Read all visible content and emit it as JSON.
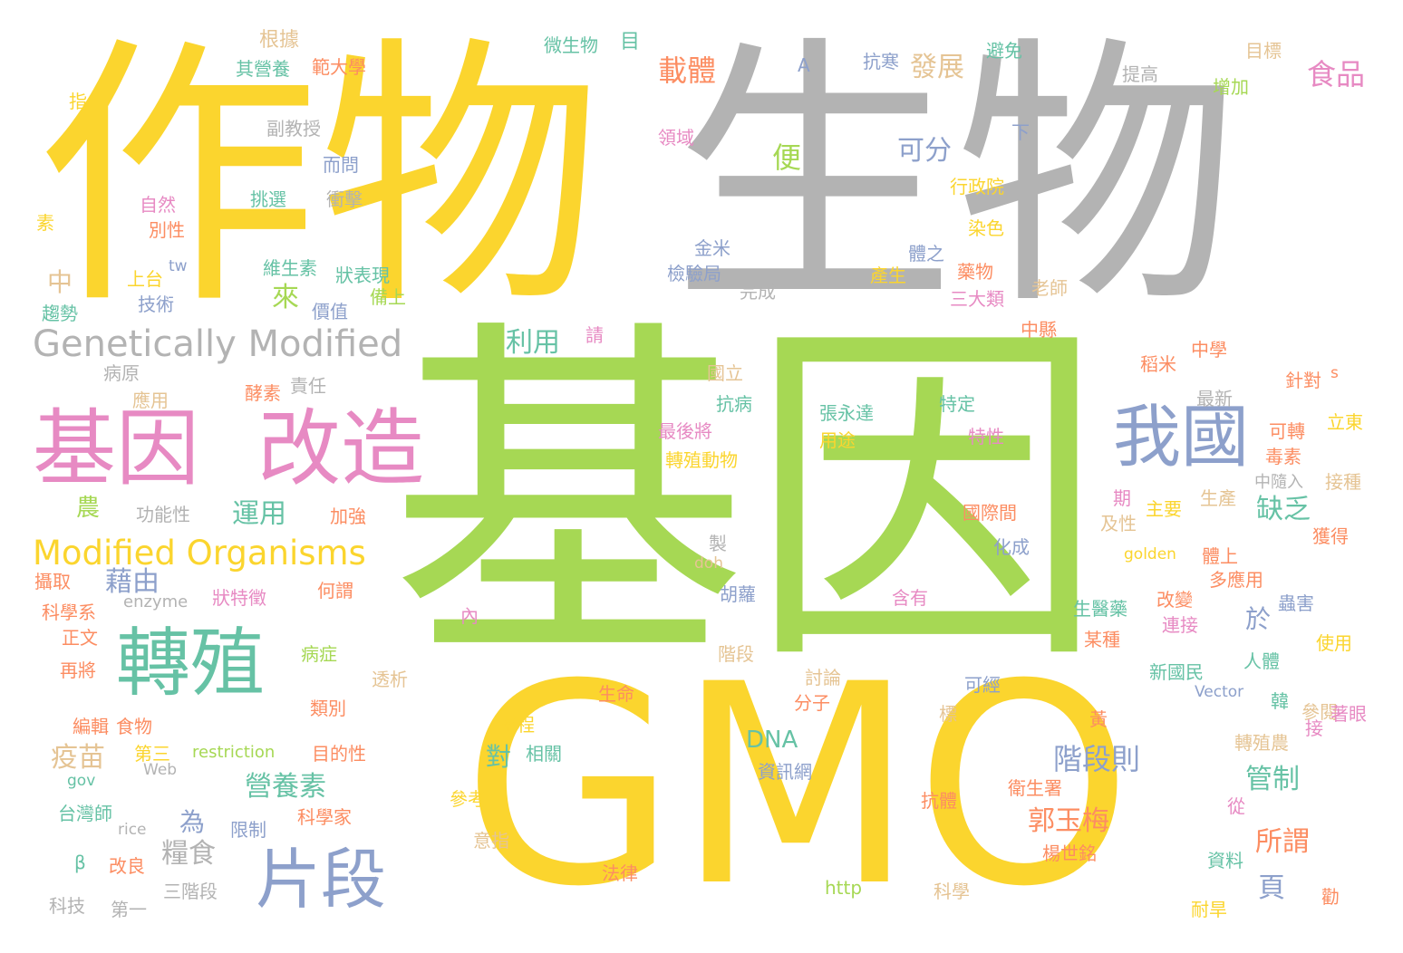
{
  "palette": {
    "yellow": "#fbd52e",
    "green": "#a6d854",
    "gray": "#b3b3b3",
    "pink": "#e78ac3",
    "blue": "#8da0cb",
    "teal": "#66c2a5",
    "orange": "#fc8d62",
    "tan": "#e5c494"
  },
  "words": [
    {
      "text": "作物",
      "color": "yellow"
    },
    {
      "text": "生物",
      "color": "gray"
    },
    {
      "text": "基因",
      "color": "green"
    },
    {
      "text": "GMO",
      "color": "yellow"
    },
    {
      "text": "基因",
      "color": "pink"
    },
    {
      "text": "改造",
      "color": "pink"
    },
    {
      "text": "我國",
      "color": "blue"
    },
    {
      "text": "Genetically Modified",
      "color": "gray"
    },
    {
      "text": "Modified Organisms",
      "color": "yellow"
    },
    {
      "text": "轉殖",
      "color": "teal"
    },
    {
      "text": "片段",
      "color": "blue"
    },
    {
      "text": "載體",
      "color": "orange"
    },
    {
      "text": "發展",
      "color": "tan"
    },
    {
      "text": "食品",
      "color": "pink"
    },
    {
      "text": "可分",
      "color": "blue"
    },
    {
      "text": "便",
      "color": "green"
    },
    {
      "text": "利用",
      "color": "teal"
    },
    {
      "text": "來",
      "color": "green"
    },
    {
      "text": "運用",
      "color": "teal"
    },
    {
      "text": "藉由",
      "color": "blue"
    },
    {
      "text": "農",
      "color": "green"
    },
    {
      "text": "中",
      "color": "tan"
    },
    {
      "text": "缺乏",
      "color": "teal"
    },
    {
      "text": "於",
      "color": "blue"
    },
    {
      "text": "DNA",
      "color": "teal"
    },
    {
      "text": "階段則",
      "color": "blue"
    },
    {
      "text": "營養素",
      "color": "teal"
    },
    {
      "text": "郭玉梅",
      "color": "orange"
    },
    {
      "text": "管制",
      "color": "teal"
    },
    {
      "text": "所謂",
      "color": "orange"
    },
    {
      "text": "頁",
      "color": "blue"
    },
    {
      "text": "疫苗",
      "color": "tan"
    },
    {
      "text": "對",
      "color": "teal"
    },
    {
      "text": "為",
      "color": "blue"
    },
    {
      "text": "糧食",
      "color": "gray"
    },
    {
      "text": "根據",
      "color": "tan"
    },
    {
      "text": "其營養",
      "color": "teal"
    },
    {
      "text": "範大學",
      "color": "orange"
    },
    {
      "text": "微生物",
      "color": "teal"
    },
    {
      "text": "目",
      "color": "teal"
    },
    {
      "text": "A",
      "color": "blue"
    },
    {
      "text": "抗寒",
      "color": "blue"
    },
    {
      "text": "避免",
      "color": "teal"
    },
    {
      "text": "提高",
      "color": "gray"
    },
    {
      "text": "目標",
      "color": "tan"
    },
    {
      "text": "增加",
      "color": "green"
    },
    {
      "text": "指",
      "color": "yellow"
    },
    {
      "text": "副教授",
      "color": "gray"
    },
    {
      "text": "領域",
      "color": "pink"
    },
    {
      "text": "下",
      "color": "blue"
    },
    {
      "text": "而問",
      "color": "blue"
    },
    {
      "text": "自然",
      "color": "pink"
    },
    {
      "text": "挑選",
      "color": "teal"
    },
    {
      "text": "衝擊",
      "color": "gray"
    },
    {
      "text": "行政院",
      "color": "yellow"
    },
    {
      "text": "素",
      "color": "yellow"
    },
    {
      "text": "別性",
      "color": "orange"
    },
    {
      "text": "染色",
      "color": "yellow"
    },
    {
      "text": "上台",
      "color": "yellow"
    },
    {
      "text": "tw",
      "color": "blue"
    },
    {
      "text": "維生素",
      "color": "teal"
    },
    {
      "text": "狀表現",
      "color": "teal"
    },
    {
      "text": "金米",
      "color": "blue"
    },
    {
      "text": "體之",
      "color": "blue"
    },
    {
      "text": "檢驗局",
      "color": "blue"
    },
    {
      "text": "產生",
      "color": "yellow"
    },
    {
      "text": "藥物",
      "color": "orange"
    },
    {
      "text": "技術",
      "color": "blue"
    },
    {
      "text": "備上",
      "color": "green"
    },
    {
      "text": "完成",
      "color": "gray"
    },
    {
      "text": "三大類",
      "color": "pink"
    },
    {
      "text": "老師",
      "color": "tan"
    },
    {
      "text": "趨勢",
      "color": "teal"
    },
    {
      "text": "價值",
      "color": "blue"
    },
    {
      "text": "中縣",
      "color": "orange"
    },
    {
      "text": "請",
      "color": "pink"
    },
    {
      "text": "稻米",
      "color": "orange"
    },
    {
      "text": "中學",
      "color": "orange"
    },
    {
      "text": "病原",
      "color": "gray"
    },
    {
      "text": "責任",
      "color": "gray"
    },
    {
      "text": "國立",
      "color": "tan"
    },
    {
      "text": "最新",
      "color": "gray"
    },
    {
      "text": "針對",
      "color": "orange"
    },
    {
      "text": "s",
      "color": "orange"
    },
    {
      "text": "應用",
      "color": "tan"
    },
    {
      "text": "酵素",
      "color": "orange"
    },
    {
      "text": "抗病",
      "color": "teal"
    },
    {
      "text": "張永達",
      "color": "teal"
    },
    {
      "text": "特定",
      "color": "teal"
    },
    {
      "text": "特性",
      "color": "pink"
    },
    {
      "text": "可轉",
      "color": "orange"
    },
    {
      "text": "立東",
      "color": "yellow"
    },
    {
      "text": "最後將",
      "color": "pink"
    },
    {
      "text": "用途",
      "color": "yellow"
    },
    {
      "text": "毒素",
      "color": "orange"
    },
    {
      "text": "轉殖動物",
      "color": "yellow"
    },
    {
      "text": "中隨入",
      "color": "gray"
    },
    {
      "text": "接種",
      "color": "tan"
    },
    {
      "text": "功能性",
      "color": "gray"
    },
    {
      "text": "加強",
      "color": "orange"
    },
    {
      "text": "國際間",
      "color": "orange"
    },
    {
      "text": "期",
      "color": "pink"
    },
    {
      "text": "主要",
      "color": "yellow"
    },
    {
      "text": "生產",
      "color": "tan"
    },
    {
      "text": "及性",
      "color": "tan"
    },
    {
      "text": "獲得",
      "color": "orange"
    },
    {
      "text": "製",
      "color": "gray"
    },
    {
      "text": "golden",
      "color": "yellow"
    },
    {
      "text": "體上",
      "color": "orange"
    },
    {
      "text": "doh",
      "color": "tan"
    },
    {
      "text": "化成",
      "color": "blue"
    },
    {
      "text": "多應用",
      "color": "orange"
    },
    {
      "text": "攝取",
      "color": "orange"
    },
    {
      "text": "enzyme",
      "color": "gray"
    },
    {
      "text": "狀特徵",
      "color": "pink"
    },
    {
      "text": "何謂",
      "color": "orange"
    },
    {
      "text": "胡蘿",
      "color": "blue"
    },
    {
      "text": "含有",
      "color": "pink"
    },
    {
      "text": "改變",
      "color": "orange"
    },
    {
      "text": "蟲害",
      "color": "blue"
    },
    {
      "text": "科學系",
      "color": "orange"
    },
    {
      "text": "正文",
      "color": "orange"
    },
    {
      "text": "內",
      "color": "pink"
    },
    {
      "text": "生醫藥",
      "color": "teal"
    },
    {
      "text": "連接",
      "color": "pink"
    },
    {
      "text": "病症",
      "color": "green"
    },
    {
      "text": "再將",
      "color": "orange"
    },
    {
      "text": "階段",
      "color": "tan"
    },
    {
      "text": "某種",
      "color": "orange"
    },
    {
      "text": "使用",
      "color": "yellow"
    },
    {
      "text": "透析",
      "color": "tan"
    },
    {
      "text": "討論",
      "color": "tan"
    },
    {
      "text": "新國民",
      "color": "teal"
    },
    {
      "text": "人體",
      "color": "teal"
    },
    {
      "text": "類別",
      "color": "orange"
    },
    {
      "text": "生命",
      "color": "orange"
    },
    {
      "text": "分子",
      "color": "orange"
    },
    {
      "text": "可經",
      "color": "blue"
    },
    {
      "text": "Vector",
      "color": "blue"
    },
    {
      "text": "韓",
      "color": "teal"
    },
    {
      "text": "參閱",
      "color": "tan"
    },
    {
      "text": "編輯",
      "color": "orange"
    },
    {
      "text": "食物",
      "color": "orange"
    },
    {
      "text": "標",
      "color": "tan"
    },
    {
      "text": "著眼",
      "color": "pink"
    },
    {
      "text": "歷程",
      "color": "yellow"
    },
    {
      "text": "黃",
      "color": "orange"
    },
    {
      "text": "接",
      "color": "pink"
    },
    {
      "text": "第三",
      "color": "yellow"
    },
    {
      "text": "restriction",
      "color": "green"
    },
    {
      "text": "目的性",
      "color": "orange"
    },
    {
      "text": "相關",
      "color": "teal"
    },
    {
      "text": "轉殖農",
      "color": "tan"
    },
    {
      "text": "gov",
      "color": "teal"
    },
    {
      "text": "Web",
      "color": "gray"
    },
    {
      "text": "資訊網",
      "color": "blue"
    },
    {
      "text": "衛生署",
      "color": "orange"
    },
    {
      "text": "台灣師",
      "color": "teal"
    },
    {
      "text": "科學家",
      "color": "orange"
    },
    {
      "text": "參考",
      "color": "yellow"
    },
    {
      "text": "抗體",
      "color": "orange"
    },
    {
      "text": "從",
      "color": "pink"
    },
    {
      "text": "rice",
      "color": "gray"
    },
    {
      "text": "限制",
      "color": "blue"
    },
    {
      "text": "意指",
      "color": "tan"
    },
    {
      "text": "楊世銘",
      "color": "orange"
    },
    {
      "text": "β",
      "color": "teal"
    },
    {
      "text": "改良",
      "color": "orange"
    },
    {
      "text": "三階段",
      "color": "gray"
    },
    {
      "text": "法律",
      "color": "orange"
    },
    {
      "text": "資料",
      "color": "teal"
    },
    {
      "text": "科技",
      "color": "gray"
    },
    {
      "text": "第一",
      "color": "gray"
    },
    {
      "text": "http",
      "color": "green"
    },
    {
      "text": "科學",
      "color": "tan"
    },
    {
      "text": "耐旱",
      "color": "yellow"
    },
    {
      "text": "勸",
      "color": "orange"
    }
  ]
}
